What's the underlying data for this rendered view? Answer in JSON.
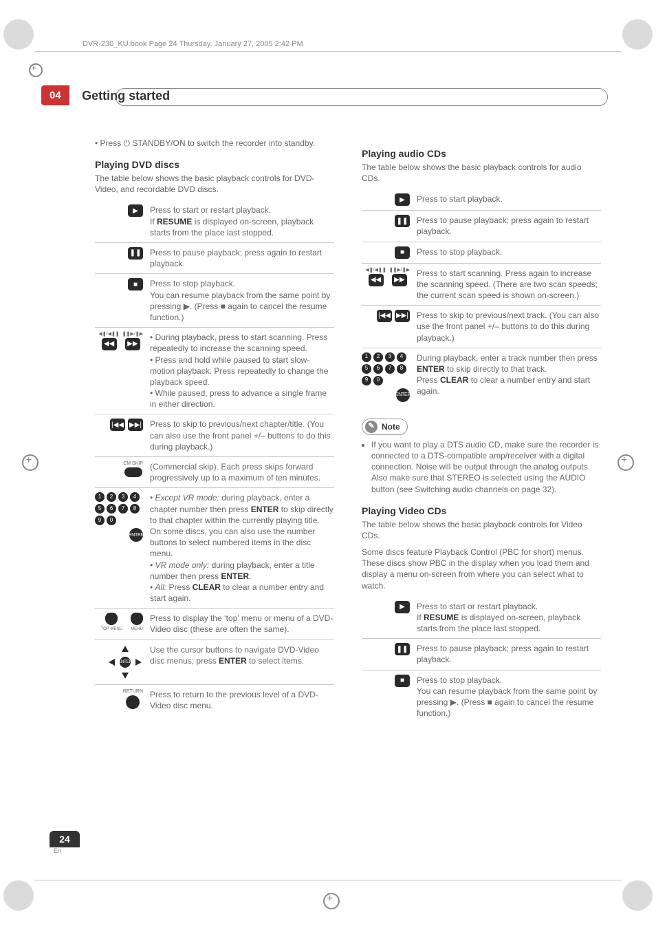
{
  "meta": {
    "bookline": "DVR-230_KU.book  Page 24  Thursday, January 27, 2005  2:42 PM",
    "chapter_number": "04",
    "chapter_title": "Getting started",
    "page_number": "24",
    "page_lang": "En"
  },
  "left": {
    "lead_bullet": "• Press ⏻ STANDBY/ON to switch the recorder into standby.",
    "section_title": "Playing DVD discs",
    "section_intro": "The table below shows the basic playback controls for DVD-Video, and recordable DVD discs.",
    "rows": [
      {
        "icons": [
          {
            "g": "▶"
          }
        ],
        "text": "Press to start or restart playback.\nIf RESUME is displayed on-screen, playback starts from the place last stopped."
      },
      {
        "icons": [
          {
            "g": "❚❚"
          }
        ],
        "text": "Press to pause playback; press again to restart playback."
      },
      {
        "icons": [
          {
            "g": "■"
          }
        ],
        "text": "Press to stop playback.\nYou can resume playback from the same point by pressing ▶. (Press ■ again to cancel the resume function.)"
      },
      {
        "icons": [
          {
            "lbl": "◀❚/◀❚❚",
            "g": "◀◀"
          },
          {
            "lbl": "❚❚▶/❚▶",
            "g": "▶▶"
          }
        ],
        "text": "• During playback, press to start scanning. Press repeatedly to increase the scanning speed.\n• Press and hold while paused to start slow-motion playback. Press repeatedly to change the playback speed.\n• While paused, press to advance a single frame in either direction."
      },
      {
        "icons": [
          {
            "g": "|◀◀"
          },
          {
            "g": "▶▶|"
          }
        ],
        "text": "Press to skip to previous/next chapter/title. (You can also use the front panel +/– buttons to do this during playback.)"
      },
      {
        "icons": [
          {
            "lbl": "CM SKIP",
            "g": "",
            "oval": true
          }
        ],
        "text": "(Commercial skip). Each press skips forward progressively up to a maximum of ten minutes."
      },
      {
        "numpad": true,
        "text": "• Except VR mode: during playback, enter a chapter number then press ENTER to skip directly to that chapter within the currently playing title.\nOn some discs, you can also use the number buttons to select numbered items in the disc menu.\n• VR mode only: during playback, enter a title number then press ENTER.\n• All: Press CLEAR to clear a number entry and start again."
      },
      {
        "menus": true,
        "text": "Press to display the ‘top’ menu or menu of a DVD-Video disc (these are often the same)."
      },
      {
        "dpad": true,
        "text": "Use the cursor buttons to navigate DVD-Video disc menus; press ENTER to select items."
      },
      {
        "icons": [
          {
            "lbl": "RETURN",
            "g": "",
            "round": true
          }
        ],
        "text": "Press to return to the previous level of a DVD-Video disc menu."
      }
    ],
    "menu_labels": {
      "top": "TOP MENU",
      "menu": "MENU",
      "enter": "ENTER"
    }
  },
  "right": {
    "audio": {
      "section_title": "Playing audio CDs",
      "section_intro": "The table below shows the basic playback controls for audio CDs.",
      "rows": [
        {
          "icons": [
            {
              "g": "▶"
            }
          ],
          "text": "Press to start  playback."
        },
        {
          "icons": [
            {
              "g": "❚❚"
            }
          ],
          "text": "Press to pause playback; press again to restart playback."
        },
        {
          "icons": [
            {
              "g": "■"
            }
          ],
          "text": "Press to stop playback."
        },
        {
          "icons": [
            {
              "lbl": "◀❚/◀❚❚",
              "g": "◀◀"
            },
            {
              "lbl": "❚❚▶/❚▶",
              "g": "▶▶"
            }
          ],
          "text": "Press to start scanning. Press again to increase the scanning speed. (There are two scan speeds; the current scan speed is shown on-screen.)"
        },
        {
          "icons": [
            {
              "g": "|◀◀"
            },
            {
              "g": "▶▶|"
            }
          ],
          "text": "Press to skip to previous/next track. (You can also use the front panel +/– buttons to do this during playback.)"
        },
        {
          "numpad": true,
          "text": "During playback, enter a track number then press ENTER to skip directly to that track.\nPress CLEAR to clear a number entry and start again."
        }
      ]
    },
    "note": {
      "label": "Note",
      "item": "If you want to play a DTS audio CD, make sure the recorder is connected to a DTS-compatible amp/receiver with a digital connection. Noise will be output through the analog outputs. Also make sure that STEREO is selected using the AUDIO button (see Switching audio channels on page 32)."
    },
    "video": {
      "section_title": "Playing Video CDs",
      "section_intro_1": "The table below shows the basic playback controls for Video CDs.",
      "section_intro_2": "Some discs feature Playback Control (PBC for short) menus. These discs show PBC in the display when you load them and display a menu on-screen from where you can select what to watch.",
      "rows": [
        {
          "icons": [
            {
              "g": "▶"
            }
          ],
          "text": "Press to start or restart playback.\nIf RESUME is displayed on-screen, playback starts from the place last stopped."
        },
        {
          "icons": [
            {
              "g": "❚❚"
            }
          ],
          "text": "Press to pause playback; press again to restart playback."
        },
        {
          "icons": [
            {
              "g": "■"
            }
          ],
          "text": "Press to stop playback.\nYou can resume playback from the same point by pressing ▶. (Press ■ again to cancel the resume function.)"
        }
      ]
    }
  }
}
